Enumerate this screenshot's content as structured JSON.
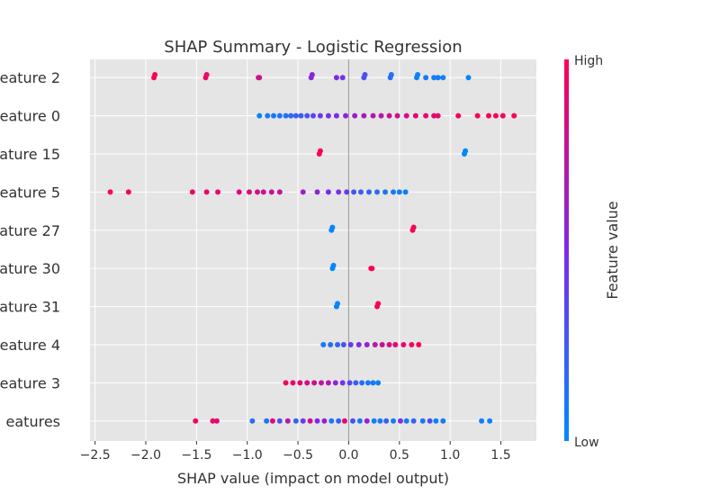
{
  "chart_data": {
    "type": "scatter",
    "title": "SHAP Summary - Logistic Regression",
    "xlabel": "SHAP value (impact on model output)",
    "ylabel": "",
    "xlim": [
      -2.55,
      1.85
    ],
    "xticks": [
      -2.5,
      -2.0,
      -1.5,
      -1.0,
      -0.5,
      0.0,
      0.5,
      1.0,
      1.5
    ],
    "xtick_labels": [
      "−2.5",
      "−2.0",
      "−1.5",
      "−1.0",
      "−0.5",
      "0.0",
      "0.5",
      "1.0",
      "1.5"
    ],
    "grid": true,
    "colorbar": {
      "label": "Feature value",
      "high": "High",
      "low": "Low",
      "high_color": "#ff0052",
      "low_color": "#008bfb"
    },
    "features": [
      {
        "label": "eature 2",
        "points": [
          {
            "x": -1.92,
            "v": 0.98
          },
          {
            "x": -1.91,
            "v": 0.97
          },
          {
            "x": -1.41,
            "v": 0.93
          },
          {
            "x": -1.4,
            "v": 0.92
          },
          {
            "x": -0.89,
            "v": 0.8
          },
          {
            "x": -0.88,
            "v": 0.81
          },
          {
            "x": -0.37,
            "v": 0.55
          },
          {
            "x": -0.36,
            "v": 0.55
          },
          {
            "x": -0.12,
            "v": 0.52
          },
          {
            "x": -0.06,
            "v": 0.45
          },
          {
            "x": 0.15,
            "v": 0.3
          },
          {
            "x": 0.16,
            "v": 0.3
          },
          {
            "x": 0.41,
            "v": 0.15
          },
          {
            "x": 0.42,
            "v": 0.15
          },
          {
            "x": 0.67,
            "v": 0.05
          },
          {
            "x": 0.68,
            "v": 0.05
          },
          {
            "x": 0.76,
            "v": 0.1
          },
          {
            "x": 0.84,
            "v": 0.05
          },
          {
            "x": 0.88,
            "v": 0.1
          },
          {
            "x": 0.93,
            "v": 0.05
          },
          {
            "x": 1.18,
            "v": 0.03
          }
        ]
      },
      {
        "label": "eature 0",
        "points": [
          {
            "x": -0.88,
            "v": 0.05
          },
          {
            "x": -0.8,
            "v": 0.08
          },
          {
            "x": -0.74,
            "v": 0.1
          },
          {
            "x": -0.68,
            "v": 0.12
          },
          {
            "x": -0.62,
            "v": 0.15
          },
          {
            "x": -0.57,
            "v": 0.18
          },
          {
            "x": -0.52,
            "v": 0.2
          },
          {
            "x": -0.47,
            "v": 0.25
          },
          {
            "x": -0.41,
            "v": 0.3
          },
          {
            "x": -0.35,
            "v": 0.35
          },
          {
            "x": -0.28,
            "v": 0.42
          },
          {
            "x": -0.2,
            "v": 0.45
          },
          {
            "x": -0.12,
            "v": 0.5
          },
          {
            "x": -0.03,
            "v": 0.55
          },
          {
            "x": 0.06,
            "v": 0.6
          },
          {
            "x": 0.15,
            "v": 0.65
          },
          {
            "x": 0.24,
            "v": 0.7
          },
          {
            "x": 0.32,
            "v": 0.72
          },
          {
            "x": 0.4,
            "v": 0.78
          },
          {
            "x": 0.48,
            "v": 0.8
          },
          {
            "x": 0.57,
            "v": 0.85
          },
          {
            "x": 0.66,
            "v": 0.88
          },
          {
            "x": 0.76,
            "v": 0.9
          },
          {
            "x": 0.84,
            "v": 0.9
          },
          {
            "x": 0.88,
            "v": 0.92
          },
          {
            "x": 1.08,
            "v": 0.95
          },
          {
            "x": 1.27,
            "v": 0.97
          },
          {
            "x": 1.38,
            "v": 0.97
          },
          {
            "x": 1.45,
            "v": 0.98
          },
          {
            "x": 1.52,
            "v": 0.98
          },
          {
            "x": 1.63,
            "v": 0.99
          }
        ]
      },
      {
        "label": "eature 15",
        "points": [
          {
            "x": -0.29,
            "v": 0.99
          },
          {
            "x": -0.28,
            "v": 0.98
          },
          {
            "x": 1.14,
            "v": 0.02
          },
          {
            "x": 1.15,
            "v": 0.02
          }
        ]
      },
      {
        "label": "eature 5",
        "points": [
          {
            "x": -2.35,
            "v": 0.98
          },
          {
            "x": -2.17,
            "v": 0.97
          },
          {
            "x": -1.54,
            "v": 0.95
          },
          {
            "x": -1.4,
            "v": 0.92
          },
          {
            "x": -1.29,
            "v": 0.9
          },
          {
            "x": -1.08,
            "v": 0.88
          },
          {
            "x": -0.98,
            "v": 0.85
          },
          {
            "x": -0.9,
            "v": 0.82
          },
          {
            "x": -0.84,
            "v": 0.8
          },
          {
            "x": -0.76,
            "v": 0.78
          },
          {
            "x": -0.68,
            "v": 0.75
          },
          {
            "x": -0.45,
            "v": 0.62
          },
          {
            "x": -0.31,
            "v": 0.55
          },
          {
            "x": -0.2,
            "v": 0.5
          },
          {
            "x": -0.1,
            "v": 0.45
          },
          {
            "x": -0.02,
            "v": 0.4
          },
          {
            "x": 0.05,
            "v": 0.3
          },
          {
            "x": 0.12,
            "v": 0.25
          },
          {
            "x": 0.2,
            "v": 0.2
          },
          {
            "x": 0.28,
            "v": 0.15
          },
          {
            "x": 0.36,
            "v": 0.12
          },
          {
            "x": 0.44,
            "v": 0.1
          },
          {
            "x": 0.5,
            "v": 0.08
          },
          {
            "x": 0.56,
            "v": 0.05
          }
        ]
      },
      {
        "label": "eature 27",
        "points": [
          {
            "x": -0.17,
            "v": 0.03
          },
          {
            "x": -0.16,
            "v": 0.02
          },
          {
            "x": 0.63,
            "v": 0.98
          },
          {
            "x": 0.64,
            "v": 0.99
          }
        ]
      },
      {
        "label": "eature 30",
        "points": [
          {
            "x": -0.16,
            "v": 0.02
          },
          {
            "x": -0.15,
            "v": 0.03
          },
          {
            "x": 0.22,
            "v": 0.98
          },
          {
            "x": 0.23,
            "v": 0.99
          }
        ]
      },
      {
        "label": "eature 31",
        "points": [
          {
            "x": -0.12,
            "v": 0.03
          },
          {
            "x": -0.11,
            "v": 0.02
          },
          {
            "x": 0.28,
            "v": 0.98
          },
          {
            "x": 0.29,
            "v": 0.99
          }
        ]
      },
      {
        "label": "eature 4",
        "points": [
          {
            "x": -0.25,
            "v": 0.1
          },
          {
            "x": -0.18,
            "v": 0.15
          },
          {
            "x": -0.11,
            "v": 0.2
          },
          {
            "x": -0.05,
            "v": 0.3
          },
          {
            "x": 0.02,
            "v": 0.4
          },
          {
            "x": 0.1,
            "v": 0.5
          },
          {
            "x": 0.18,
            "v": 0.6
          },
          {
            "x": 0.26,
            "v": 0.7
          },
          {
            "x": 0.33,
            "v": 0.78
          },
          {
            "x": 0.4,
            "v": 0.82
          },
          {
            "x": 0.46,
            "v": 0.88
          },
          {
            "x": 0.54,
            "v": 0.9
          },
          {
            "x": 0.62,
            "v": 0.95
          },
          {
            "x": 0.69,
            "v": 0.98
          }
        ]
      },
      {
        "label": "eature 3",
        "points": [
          {
            "x": -0.62,
            "v": 0.95
          },
          {
            "x": -0.55,
            "v": 0.92
          },
          {
            "x": -0.48,
            "v": 0.88
          },
          {
            "x": -0.41,
            "v": 0.85
          },
          {
            "x": -0.34,
            "v": 0.8
          },
          {
            "x": -0.27,
            "v": 0.75
          },
          {
            "x": -0.2,
            "v": 0.7
          },
          {
            "x": -0.13,
            "v": 0.55
          },
          {
            "x": -0.06,
            "v": 0.45
          },
          {
            "x": 0.01,
            "v": 0.35
          },
          {
            "x": 0.07,
            "v": 0.25
          },
          {
            "x": 0.13,
            "v": 0.15
          },
          {
            "x": 0.19,
            "v": 0.1
          },
          {
            "x": 0.24,
            "v": 0.08
          },
          {
            "x": 0.29,
            "v": 0.05
          }
        ]
      },
      {
        "label": "eatures",
        "points": [
          {
            "x": -1.51,
            "v": 0.95
          },
          {
            "x": -1.34,
            "v": 0.92
          },
          {
            "x": -1.3,
            "v": 0.9
          },
          {
            "x": -0.95,
            "v": 0.15
          },
          {
            "x": -0.81,
            "v": 0.1
          },
          {
            "x": -0.75,
            "v": 0.85
          },
          {
            "x": -0.68,
            "v": 0.3
          },
          {
            "x": -0.6,
            "v": 0.7
          },
          {
            "x": -0.52,
            "v": 0.2
          },
          {
            "x": -0.45,
            "v": 0.4
          },
          {
            "x": -0.38,
            "v": 0.8
          },
          {
            "x": -0.31,
            "v": 0.5
          },
          {
            "x": -0.24,
            "v": 0.6
          },
          {
            "x": -0.17,
            "v": 0.1
          },
          {
            "x": -0.1,
            "v": 0.2
          },
          {
            "x": -0.04,
            "v": 0.9
          },
          {
            "x": 0.04,
            "v": 0.3
          },
          {
            "x": 0.11,
            "v": 0.1
          },
          {
            "x": 0.18,
            "v": 0.6
          },
          {
            "x": 0.25,
            "v": 0.05
          },
          {
            "x": 0.31,
            "v": 0.1
          },
          {
            "x": 0.37,
            "v": 0.2
          },
          {
            "x": 0.44,
            "v": 0.1
          },
          {
            "x": 0.51,
            "v": 0.45
          },
          {
            "x": 0.57,
            "v": 0.1
          },
          {
            "x": 0.64,
            "v": 0.2
          },
          {
            "x": 0.73,
            "v": 0.1
          },
          {
            "x": 0.8,
            "v": 0.3
          },
          {
            "x": 0.86,
            "v": 0.05
          },
          {
            "x": 0.93,
            "v": 0.1
          },
          {
            "x": 1.31,
            "v": 0.05
          },
          {
            "x": 1.39,
            "v": 0.05
          }
        ]
      }
    ]
  }
}
